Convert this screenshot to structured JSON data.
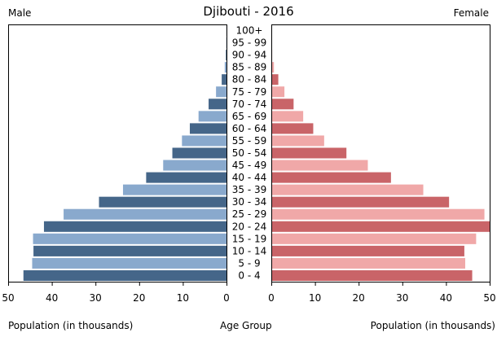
{
  "chart_data": {
    "type": "bar",
    "title": "Djibouti - 2016",
    "left_label": "Male",
    "right_label": "Female",
    "xlabel_left": "Population (in thousands)",
    "xlabel_center": "Age Group",
    "xlabel_right": "Population (in thousands)",
    "xlim": [
      0,
      50
    ],
    "xticks": [
      "50",
      "40",
      "30",
      "20",
      "10",
      "0"
    ],
    "xticks_right": [
      "0",
      "10",
      "20",
      "30",
      "40",
      "50"
    ],
    "categories": [
      "0 - 4",
      "5 - 9",
      "10 - 14",
      "15 - 19",
      "20 - 24",
      "25 - 29",
      "30 - 34",
      "35 - 39",
      "40 - 44",
      "45 - 49",
      "50 - 54",
      "55 - 59",
      "60 - 64",
      "65 - 69",
      "70 - 74",
      "75 - 79",
      "80 - 84",
      "85 - 89",
      "90 - 94",
      "95 - 99",
      "100+"
    ],
    "series": [
      {
        "name": "Male",
        "values": [
          46.5,
          44.5,
          44.2,
          44.3,
          41.8,
          37.3,
          29.2,
          23.7,
          18.4,
          14.5,
          12.4,
          10.2,
          8.4,
          6.4,
          4.1,
          2.4,
          1.1,
          0.4,
          0.15,
          0.05,
          0.02
        ]
      },
      {
        "name": "Female",
        "values": [
          46.0,
          44.4,
          44.2,
          46.9,
          50.0,
          48.8,
          40.7,
          34.8,
          27.4,
          22.1,
          17.2,
          12.1,
          9.6,
          7.3,
          5.1,
          3.0,
          1.6,
          0.6,
          0.2,
          0.06,
          0.02
        ]
      }
    ],
    "colors": {
      "male_even": "#456689",
      "male_odd": "#89a9cd",
      "female_even": "#c96468",
      "female_odd": "#f0a8a8"
    },
    "grid": false,
    "legend": "none"
  }
}
